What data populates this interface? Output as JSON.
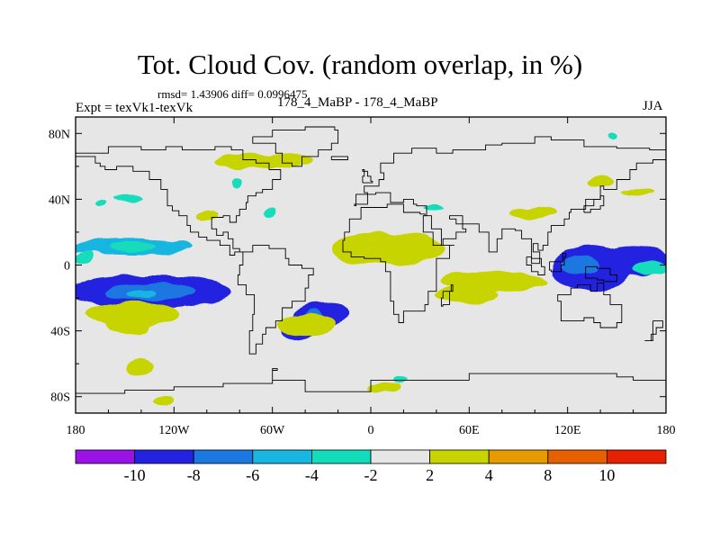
{
  "title": "Tot. Cloud Cov. (random overlap, in %)",
  "stats_text": "rmsd= 1.43906  diff= 0.0996475",
  "expt_text": "Expt = texVk1-texVk",
  "runs_text": "178_4_MaBP - 178_4_MaBP",
  "season": "JJA",
  "colors": {
    "background_field": "#e6e6e6",
    "coastline": "#000000",
    "levels": [
      "#9a12e6",
      "#2222e0",
      "#1a78e0",
      "#18b6e0",
      "#12dcbc",
      "#e6e6e6",
      "#c8d400",
      "#e69a00",
      "#e66000",
      "#e62000"
    ]
  },
  "chart_data": {
    "type": "heatmap",
    "projection": "cylindrical-equidistant",
    "variable": "Total cloud cover difference",
    "units": "%",
    "lon_range": [
      -180,
      180
    ],
    "lat_range": [
      -90,
      90
    ],
    "x_ticks": [
      {
        "value": -180,
        "label": "180"
      },
      {
        "value": -120,
        "label": "120W"
      },
      {
        "value": -60,
        "label": "60W"
      },
      {
        "value": 0,
        "label": "0"
      },
      {
        "value": 60,
        "label": "60E"
      },
      {
        "value": 120,
        "label": "120E"
      },
      {
        "value": 180,
        "label": "180"
      }
    ],
    "y_ticks": [
      {
        "value": 80,
        "label": "80N"
      },
      {
        "value": 40,
        "label": "40N"
      },
      {
        "value": 0,
        "label": "0"
      },
      {
        "value": -40,
        "label": "40S"
      },
      {
        "value": -80,
        "label": "80S"
      }
    ],
    "colorbar": {
      "boundaries": [
        -10,
        -8,
        -6,
        -4,
        -2,
        2,
        4,
        8,
        10
      ],
      "labels": [
        "-10",
        "-8",
        "-6",
        "-4",
        "-2",
        "2",
        "4",
        "8",
        "10"
      ],
      "bins": 10
    },
    "anomalies": [
      {
        "lon": -147,
        "lat": 11,
        "rlon": 38,
        "rlat": 5,
        "level": 3
      },
      {
        "lon": -145,
        "lat": 11,
        "rlon": 14,
        "rlat": 3,
        "level": 4
      },
      {
        "lon": -135,
        "lat": -16,
        "rlon": 50,
        "rlat": 10,
        "level": 1
      },
      {
        "lon": -135,
        "lat": -16,
        "rlon": 28,
        "rlat": 5,
        "level": 2
      },
      {
        "lon": -140,
        "lat": -17,
        "rlon": 9,
        "rlat": 2.5,
        "level": 3
      },
      {
        "lon": 135,
        "lat": -2,
        "rlon": 25,
        "rlat": 14,
        "level": 1
      },
      {
        "lon": 160,
        "lat": 2,
        "rlon": 22,
        "rlat": 9,
        "level": 1
      },
      {
        "lon": 128,
        "lat": 0,
        "rlon": 12,
        "rlat": 6,
        "level": 2
      },
      {
        "lon": -30,
        "lat": -30,
        "rlon": 18,
        "rlat": 8,
        "level": 1
      },
      {
        "lon": -45,
        "lat": -40,
        "rlon": 10,
        "rlat": 6,
        "level": 1
      },
      {
        "lon": -35,
        "lat": -30,
        "rlon": 5,
        "rlat": 3,
        "level": 2
      },
      {
        "lon": 10,
        "lat": 10,
        "rlon": 35,
        "rlat": 10,
        "level": 6
      },
      {
        "lon": 22,
        "lat": 5,
        "rlon": 14,
        "rlat": 5,
        "level": 6
      },
      {
        "lon": 75,
        "lat": -10,
        "rlon": 32,
        "rlat": 6,
        "level": 6
      },
      {
        "lon": 58,
        "lat": -18,
        "rlon": 20,
        "rlat": 5,
        "level": 6
      },
      {
        "lon": -145,
        "lat": -30,
        "rlon": 28,
        "rlat": 8,
        "level": 6
      },
      {
        "lon": -148,
        "lat": -36,
        "rlon": 14,
        "rlat": 6,
        "level": 6
      },
      {
        "lon": -40,
        "lat": -36,
        "rlon": 18,
        "rlat": 7,
        "level": 6
      },
      {
        "lon": -75,
        "lat": 63,
        "rlon": 20,
        "rlat": 5,
        "level": 6
      },
      {
        "lon": -50,
        "lat": 64,
        "rlon": 14,
        "rlat": 4,
        "level": 6
      },
      {
        "lon": 100,
        "lat": 32,
        "rlon": 15,
        "rlat": 3.5,
        "level": 6
      },
      {
        "lon": 140,
        "lat": 50,
        "rlon": 8,
        "rlat": 3,
        "level": 6
      },
      {
        "lon": -100,
        "lat": 30,
        "rlon": 7,
        "rlat": 3,
        "level": 6
      },
      {
        "lon": -140,
        "lat": -62,
        "rlon": 8,
        "rlat": 5,
        "level": 6
      },
      {
        "lon": -126,
        "lat": -82,
        "rlon": 6,
        "rlat": 3,
        "level": 6
      },
      {
        "lon": 8,
        "lat": -74,
        "rlon": 10,
        "rlat": 3,
        "level": 6
      },
      {
        "lon": 163,
        "lat": 45,
        "rlon": 10,
        "rlat": 2,
        "level": 6
      },
      {
        "lon": -148,
        "lat": 40,
        "rlon": 10,
        "rlat": 2,
        "level": 4
      },
      {
        "lon": -175,
        "lat": 4,
        "rlon": 5,
        "rlat": 4,
        "level": 4
      },
      {
        "lon": 170,
        "lat": -2,
        "rlon": 10,
        "rlat": 4,
        "level": 4
      },
      {
        "lon": -82,
        "lat": 50,
        "rlon": 3,
        "rlat": 3,
        "level": 4
      },
      {
        "lon": -62,
        "lat": 33,
        "rlon": 4,
        "rlat": 3,
        "level": 4
      },
      {
        "lon": 38,
        "lat": 35,
        "rlon": 7,
        "rlat": 2,
        "level": 4
      },
      {
        "lon": 148,
        "lat": 78,
        "rlon": 2,
        "rlat": 2,
        "level": 4
      },
      {
        "lon": 18,
        "lat": -70,
        "rlon": 4,
        "rlat": 2,
        "level": 4
      },
      {
        "lon": -165,
        "lat": 38,
        "rlon": 3,
        "rlat": 2,
        "level": 4
      }
    ],
    "coastlines": {
      "north_america": [
        [
          -180,
          68
        ],
        [
          -168,
          68
        ],
        [
          -160,
          72
        ],
        [
          -140,
          70
        ],
        [
          -125,
          72
        ],
        [
          -115,
          70
        ],
        [
          -95,
          72
        ],
        [
          -85,
          70
        ],
        [
          -78,
          64
        ],
        [
          -70,
          62
        ],
        [
          -62,
          58
        ],
        [
          -55,
          52
        ],
        [
          -60,
          46
        ],
        [
          -66,
          44
        ],
        [
          -70,
          42
        ],
        [
          -75,
          38
        ],
        [
          -76,
          34
        ],
        [
          -80,
          30
        ],
        [
          -82,
          26
        ],
        [
          -86,
          30
        ],
        [
          -90,
          29
        ],
        [
          -97,
          27
        ],
        [
          -97,
          22
        ],
        [
          -94,
          18
        ],
        [
          -90,
          20
        ],
        [
          -87,
          16
        ],
        [
          -84,
          10
        ],
        [
          -80,
          8
        ],
        [
          -78,
          8
        ],
        [
          -83,
          6
        ],
        [
          -86,
          12
        ],
        [
          -92,
          15
        ],
        [
          -100,
          17
        ],
        [
          -105,
          20
        ],
        [
          -110,
          24
        ],
        [
          -112,
          30
        ],
        [
          -117,
          33
        ],
        [
          -121,
          36
        ],
        [
          -124,
          40
        ],
        [
          -124,
          46
        ],
        [
          -128,
          52
        ],
        [
          -135,
          57
        ],
        [
          -145,
          60
        ],
        [
          -155,
          58
        ],
        [
          -162,
          60
        ],
        [
          -165,
          62
        ],
        [
          -168,
          66
        ],
        [
          -180,
          68
        ]
      ],
      "south_america": [
        [
          -78,
          8
        ],
        [
          -72,
          12
        ],
        [
          -62,
          10
        ],
        [
          -52,
          4
        ],
        [
          -50,
          0
        ],
        [
          -42,
          -2
        ],
        [
          -35,
          -6
        ],
        [
          -38,
          -14
        ],
        [
          -40,
          -22
        ],
        [
          -48,
          -26
        ],
        [
          -54,
          -34
        ],
        [
          -58,
          -38
        ],
        [
          -64,
          -42
        ],
        [
          -66,
          -48
        ],
        [
          -70,
          -54
        ],
        [
          -74,
          -50
        ],
        [
          -74,
          -40
        ],
        [
          -72,
          -30
        ],
        [
          -71,
          -18
        ],
        [
          -76,
          -12
        ],
        [
          -81,
          -6
        ],
        [
          -80,
          0
        ],
        [
          -78,
          8
        ]
      ],
      "greenland": [
        [
          -72,
          78
        ],
        [
          -60,
          82
        ],
        [
          -40,
          84
        ],
        [
          -22,
          82
        ],
        [
          -20,
          74
        ],
        [
          -24,
          70
        ],
        [
          -32,
          66
        ],
        [
          -42,
          60
        ],
        [
          -48,
          62
        ],
        [
          -54,
          68
        ],
        [
          -58,
          74
        ],
        [
          -72,
          78
        ]
      ],
      "eurasia": [
        [
          -10,
          36
        ],
        [
          -9,
          43
        ],
        [
          -2,
          44
        ],
        [
          -4,
          48
        ],
        [
          5,
          52
        ],
        [
          8,
          56
        ],
        [
          6,
          62
        ],
        [
          14,
          68
        ],
        [
          25,
          71
        ],
        [
          40,
          68
        ],
        [
          50,
          70
        ],
        [
          60,
          70
        ],
        [
          70,
          73
        ],
        [
          80,
          74
        ],
        [
          100,
          78
        ],
        [
          110,
          76
        ],
        [
          130,
          72
        ],
        [
          150,
          71
        ],
        [
          170,
          70
        ],
        [
          180,
          68
        ],
        [
          180,
          64
        ],
        [
          172,
          62
        ],
        [
          162,
          58
        ],
        [
          158,
          52
        ],
        [
          150,
          46
        ],
        [
          142,
          48
        ],
        [
          140,
          40
        ],
        [
          131,
          34
        ],
        [
          122,
          32
        ],
        [
          121,
          28
        ],
        [
          118,
          24
        ],
        [
          110,
          20
        ],
        [
          108,
          12
        ],
        [
          105,
          9
        ],
        [
          102,
          13
        ],
        [
          99,
          8
        ],
        [
          103,
          1
        ],
        [
          98,
          8
        ],
        [
          98,
          16
        ],
        [
          92,
          21
        ],
        [
          88,
          22
        ],
        [
          80,
          16
        ],
        [
          77,
          8
        ],
        [
          72,
          20
        ],
        [
          66,
          25
        ],
        [
          57,
          25
        ],
        [
          52,
          28
        ],
        [
          48,
          30
        ],
        [
          56,
          22
        ],
        [
          58,
          20
        ],
        [
          52,
          16
        ],
        [
          44,
          12
        ],
        [
          38,
          20
        ],
        [
          32,
          30
        ],
        [
          34,
          36
        ],
        [
          28,
          37
        ],
        [
          26,
          40
        ],
        [
          20,
          38
        ],
        [
          12,
          44
        ],
        [
          10,
          44
        ],
        [
          3,
          43
        ],
        [
          -2,
          37
        ],
        [
          -10,
          36
        ]
      ],
      "africa": [
        [
          -17,
          15
        ],
        [
          -16,
          20
        ],
        [
          -13,
          28
        ],
        [
          -6,
          35
        ],
        [
          10,
          37
        ],
        [
          20,
          32
        ],
        [
          30,
          31
        ],
        [
          33,
          30
        ],
        [
          37,
          22
        ],
        [
          43,
          12
        ],
        [
          51,
          12
        ],
        [
          48,
          4
        ],
        [
          40,
          -4
        ],
        [
          40,
          -16
        ],
        [
          35,
          -24
        ],
        [
          33,
          -28
        ],
        [
          20,
          -35
        ],
        [
          17,
          -30
        ],
        [
          14,
          -22
        ],
        [
          12,
          -12
        ],
        [
          12,
          -4
        ],
        [
          9,
          2
        ],
        [
          6,
          4
        ],
        [
          -4,
          5
        ],
        [
          -12,
          8
        ],
        [
          -17,
          15
        ]
      ],
      "australia": [
        [
          114,
          -22
        ],
        [
          116,
          -34
        ],
        [
          124,
          -34
        ],
        [
          130,
          -32
        ],
        [
          136,
          -35
        ],
        [
          140,
          -38
        ],
        [
          147,
          -38
        ],
        [
          150,
          -35
        ],
        [
          153,
          -28
        ],
        [
          153,
          -24
        ],
        [
          146,
          -18
        ],
        [
          142,
          -11
        ],
        [
          138,
          -16
        ],
        [
          134,
          -12
        ],
        [
          130,
          -12
        ],
        [
          126,
          -14
        ],
        [
          122,
          -18
        ],
        [
          114,
          -22
        ]
      ],
      "antarctica": [
        [
          -180,
          -78
        ],
        [
          -150,
          -76
        ],
        [
          -120,
          -74
        ],
        [
          -90,
          -72
        ],
        [
          -60,
          -64
        ],
        [
          -57,
          -63
        ],
        [
          -60,
          -70
        ],
        [
          -40,
          -77
        ],
        [
          0,
          -70
        ],
        [
          30,
          -70
        ],
        [
          60,
          -66
        ],
        [
          90,
          -66
        ],
        [
          120,
          -66
        ],
        [
          150,
          -68
        ],
        [
          160,
          -70
        ],
        [
          180,
          -78
        ]
      ],
      "borneo": [
        [
          109,
          2
        ],
        [
          112,
          2
        ],
        [
          117,
          7
        ],
        [
          119,
          5
        ],
        [
          118,
          0
        ],
        [
          116,
          -4
        ],
        [
          110,
          -3
        ],
        [
          109,
          2
        ]
      ],
      "sumatra": [
        [
          95,
          5
        ],
        [
          98,
          4
        ],
        [
          104,
          -1
        ],
        [
          106,
          -6
        ],
        [
          102,
          -4
        ],
        [
          98,
          0
        ],
        [
          95,
          5
        ]
      ],
      "new_guinea": [
        [
          131,
          -1
        ],
        [
          138,
          -2
        ],
        [
          146,
          -6
        ],
        [
          150,
          -10
        ],
        [
          142,
          -9
        ],
        [
          138,
          -8
        ],
        [
          131,
          -1
        ]
      ],
      "madagascar": [
        [
          44,
          -16
        ],
        [
          49,
          -12
        ],
        [
          50,
          -16
        ],
        [
          48,
          -24
        ],
        [
          44,
          -25
        ],
        [
          43,
          -20
        ],
        [
          44,
          -16
        ]
      ],
      "japan": [
        [
          130,
          32
        ],
        [
          134,
          34
        ],
        [
          140,
          36
        ],
        [
          142,
          42
        ],
        [
          140,
          40
        ],
        [
          136,
          36
        ],
        [
          130,
          32
        ]
      ],
      "uk": [
        [
          -5,
          50
        ],
        [
          1,
          51
        ],
        [
          0,
          54
        ],
        [
          -2,
          57
        ],
        [
          -5,
          58
        ],
        [
          -4,
          54
        ],
        [
          -5,
          50
        ]
      ],
      "new_zealand": [
        [
          172,
          -34
        ],
        [
          178,
          -38
        ],
        [
          174,
          -42
        ],
        [
          171,
          -46
        ],
        [
          167,
          -46
        ],
        [
          172,
          -40
        ],
        [
          172,
          -34
        ]
      ],
      "iceland": [
        [
          -24,
          64
        ],
        [
          -14,
          64
        ],
        [
          -14,
          66
        ],
        [
          -22,
          66
        ],
        [
          -24,
          64
        ]
      ]
    }
  }
}
